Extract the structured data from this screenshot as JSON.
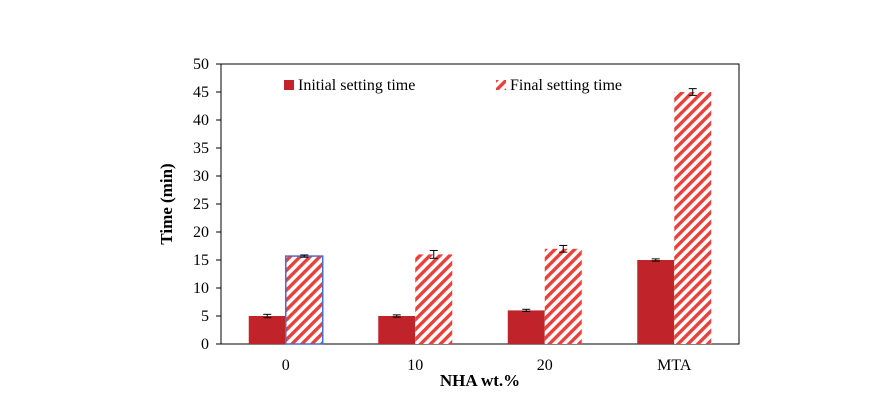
{
  "chart_data": {
    "type": "bar",
    "title": "",
    "xlabel": "NHA wt.%",
    "ylabel": "Time (min)",
    "ylim": [
      0,
      50
    ],
    "yticks": [
      0,
      5,
      10,
      15,
      20,
      25,
      30,
      35,
      40,
      45,
      50
    ],
    "grid": false,
    "legend_position": "top",
    "categories": [
      "0",
      "10",
      "20",
      "MTA"
    ],
    "series": [
      {
        "name": "Initial setting time",
        "values": [
          5.0,
          5.0,
          6.0,
          15.0
        ],
        "errors": [
          0.3,
          0.2,
          0.2,
          0.2
        ],
        "fill": "solid",
        "color": "#C0232A"
      },
      {
        "name": "Final setting time",
        "values": [
          15.7,
          16.0,
          17.0,
          45.0
        ],
        "errors": [
          0.2,
          0.7,
          0.6,
          0.6
        ],
        "fill": "hatched",
        "color": "#E8403A",
        "highlight_index": 0,
        "highlight_border": "#4A6FC6"
      }
    ]
  }
}
